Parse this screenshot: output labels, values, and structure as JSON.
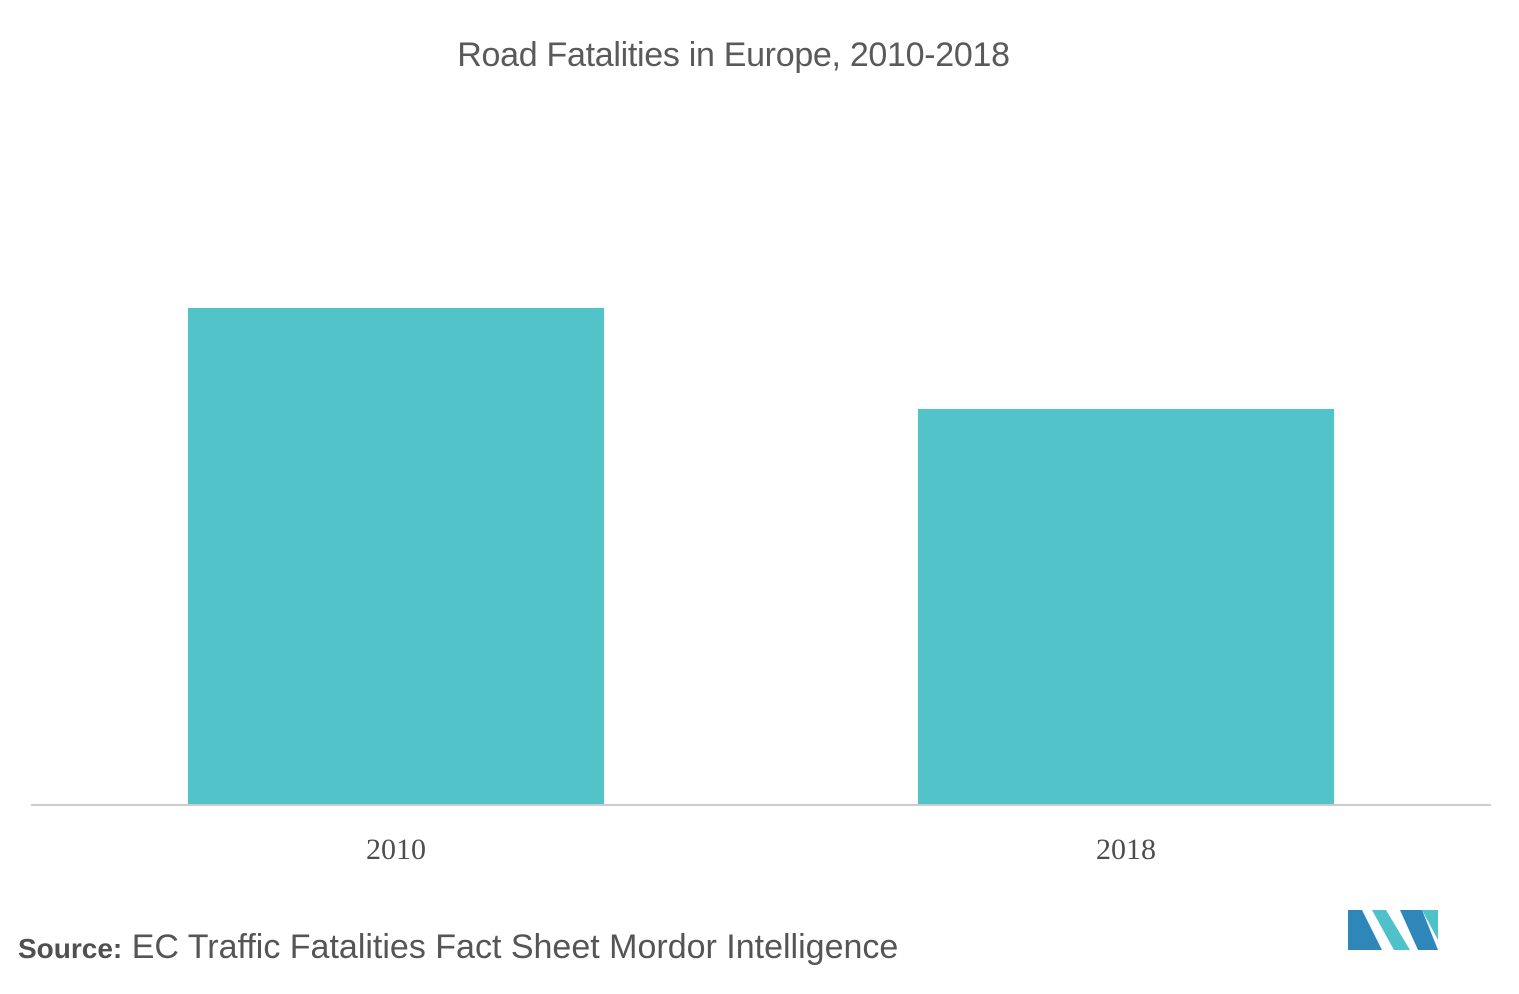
{
  "chart_data": {
    "type": "bar",
    "title": "Road Fatalities in Europe, 2010-2018",
    "categories": [
      "2010",
      "2018"
    ],
    "series": [
      {
        "values": [
          31500,
          25100
        ]
      }
    ],
    "xlabel": "",
    "ylabel": "",
    "ylim": [
      0,
      45000
    ],
    "grid": false,
    "legend": "none",
    "colors": {
      "bar": "#52c3c9",
      "axis": "#cccccc"
    }
  },
  "footer": {
    "source_label": "Source:",
    "source_text": "EC Traffic Fatalities Fact Sheet Mordor Intelligence"
  },
  "logo": {
    "icon": "mordor-intelligence-logo-icon",
    "colors": {
      "dark": "#2f86b8",
      "light": "#4fc1c9"
    }
  }
}
